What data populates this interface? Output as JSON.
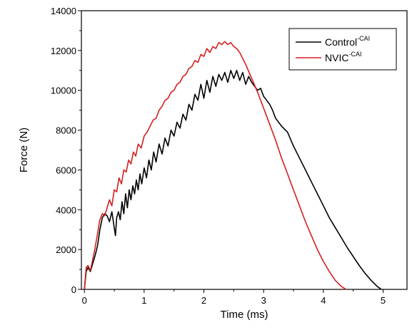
{
  "chart_data": {
    "type": "line",
    "xlabel": "Time (ms)",
    "ylabel": "Force (N)",
    "xlim": [
      -0.05,
      5.4
    ],
    "ylim": [
      0,
      14000
    ],
    "xticks": [
      0,
      1,
      2,
      3,
      4,
      5
    ],
    "yticks": [
      0,
      2000,
      4000,
      6000,
      8000,
      10000,
      12000,
      14000
    ],
    "grid": false,
    "legend_position": "top-right",
    "series": [
      {
        "name": "Control",
        "name_superscript": "-CAI",
        "color": "#000000",
        "x": [
          0,
          0.03,
          0.06,
          0.1,
          0.14,
          0.18,
          0.22,
          0.26,
          0.3,
          0.34,
          0.38,
          0.42,
          0.46,
          0.5,
          0.52,
          0.54,
          0.57,
          0.6,
          0.63,
          0.66,
          0.69,
          0.72,
          0.75,
          0.78,
          0.81,
          0.84,
          0.87,
          0.9,
          0.93,
          0.96,
          1.0,
          1.04,
          1.08,
          1.12,
          1.16,
          1.2,
          1.25,
          1.3,
          1.35,
          1.4,
          1.45,
          1.5,
          1.55,
          1.6,
          1.65,
          1.7,
          1.75,
          1.8,
          1.85,
          1.9,
          1.95,
          2.0,
          2.05,
          2.1,
          2.15,
          2.2,
          2.25,
          2.3,
          2.35,
          2.4,
          2.45,
          2.5,
          2.55,
          2.6,
          2.65,
          2.7,
          2.75,
          2.8,
          2.85,
          2.9,
          2.95,
          3.0,
          3.05,
          3.1,
          3.15,
          3.2,
          3.3,
          3.4,
          3.5,
          3.6,
          3.7,
          3.8,
          3.9,
          4.0,
          4.1,
          4.2,
          4.3,
          4.4,
          4.5,
          4.6,
          4.7,
          4.8,
          4.9,
          4.97
        ],
        "y": [
          0,
          900,
          1100,
          900,
          1300,
          1700,
          2200,
          3000,
          3600,
          3800,
          3700,
          3400,
          3900,
          3100,
          2700,
          3600,
          3900,
          3500,
          4400,
          3800,
          4800,
          4100,
          5000,
          4500,
          5200,
          4800,
          5500,
          5000,
          5800,
          5300,
          6100,
          5600,
          6500,
          6000,
          6900,
          6400,
          7300,
          6800,
          7600,
          7200,
          8000,
          7700,
          8400,
          8100,
          8800,
          8500,
          9300,
          9000,
          9800,
          9500,
          10300,
          9600,
          10500,
          9900,
          10700,
          10200,
          10800,
          10500,
          10900,
          10400,
          11000,
          10600,
          11000,
          10500,
          10900,
          10300,
          10700,
          10400,
          10200,
          10000,
          10100,
          9700,
          9500,
          9300,
          9000,
          8600,
          8200,
          7900,
          7200,
          6600,
          6000,
          5400,
          4800,
          4200,
          3600,
          3100,
          2600,
          2100,
          1650,
          1200,
          800,
          450,
          150,
          0
        ]
      },
      {
        "name": "NVIC",
        "name_superscript": "-CAI",
        "color": "#d32020",
        "x": [
          0,
          0.03,
          0.06,
          0.1,
          0.14,
          0.18,
          0.22,
          0.26,
          0.3,
          0.34,
          0.38,
          0.42,
          0.46,
          0.5,
          0.54,
          0.58,
          0.62,
          0.66,
          0.7,
          0.74,
          0.78,
          0.82,
          0.86,
          0.9,
          0.95,
          1.0,
          1.05,
          1.1,
          1.15,
          1.2,
          1.25,
          1.3,
          1.35,
          1.4,
          1.45,
          1.5,
          1.55,
          1.6,
          1.65,
          1.7,
          1.75,
          1.8,
          1.85,
          1.9,
          1.95,
          2.0,
          2.05,
          2.1,
          2.15,
          2.2,
          2.25,
          2.3,
          2.35,
          2.4,
          2.45,
          2.5,
          2.55,
          2.6,
          2.7,
          2.8,
          2.9,
          3.0,
          3.1,
          3.2,
          3.3,
          3.4,
          3.5,
          3.6,
          3.7,
          3.8,
          3.9,
          4.0,
          4.1,
          4.2,
          4.3,
          4.38
        ],
        "y": [
          0,
          1100,
          1200,
          950,
          1500,
          2100,
          2800,
          3500,
          3800,
          3700,
          4100,
          4500,
          4200,
          5000,
          4900,
          5600,
          5300,
          6000,
          5900,
          6500,
          6300,
          6900,
          6700,
          7300,
          7100,
          7700,
          7900,
          8200,
          8500,
          8600,
          9000,
          9200,
          9500,
          9600,
          9900,
          10000,
          10300,
          10400,
          10700,
          10800,
          11100,
          11200,
          11500,
          11400,
          11800,
          11700,
          12100,
          11900,
          12200,
          12100,
          12400,
          12300,
          12450,
          12300,
          12400,
          12200,
          12100,
          11900,
          11300,
          10600,
          9900,
          9100,
          8300,
          7500,
          6600,
          5800,
          5000,
          4200,
          3400,
          2700,
          2000,
          1400,
          900,
          450,
          150,
          0
        ]
      }
    ]
  }
}
